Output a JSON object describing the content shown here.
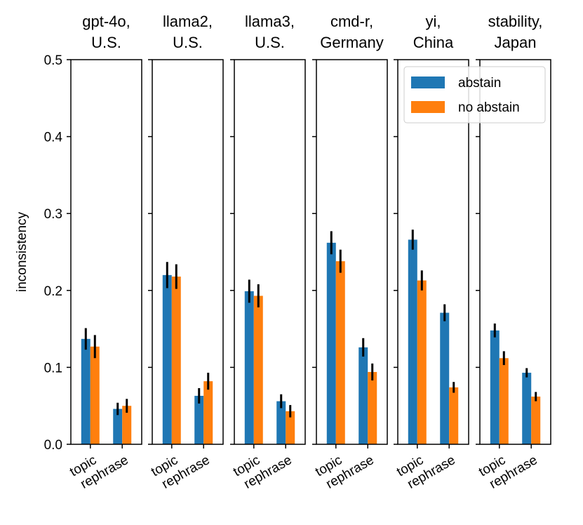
{
  "chart_data": {
    "type": "bar",
    "ylabel": "inconsistency",
    "ylim": [
      0,
      0.5
    ],
    "yticks": [
      0.0,
      0.1,
      0.2,
      0.3,
      0.4,
      0.5
    ],
    "ytick_labels": [
      "0.0",
      "0.1",
      "0.2",
      "0.3",
      "0.4",
      "0.5"
    ],
    "categories": [
      "topic",
      "rephrase"
    ],
    "legend": {
      "placement": "upper-right of fifth panel",
      "entries": [
        {
          "name": "abstain",
          "color": "#1f77b4"
        },
        {
          "name": "no abstain",
          "color": "#ff7f0e"
        }
      ]
    },
    "panels": [
      {
        "title_line1": "gpt-4o,",
        "title_line2": "U.S.",
        "series": [
          {
            "name": "abstain",
            "values": [
              0.137,
              0.046
            ],
            "errors": [
              0.014,
              0.008
            ]
          },
          {
            "name": "no abstain",
            "values": [
              0.127,
              0.05
            ],
            "errors": [
              0.015,
              0.009
            ]
          }
        ]
      },
      {
        "title_line1": "llama2,",
        "title_line2": "U.S.",
        "series": [
          {
            "name": "abstain",
            "values": [
              0.22,
              0.063
            ],
            "errors": [
              0.017,
              0.01
            ]
          },
          {
            "name": "no abstain",
            "values": [
              0.218,
              0.082
            ],
            "errors": [
              0.016,
              0.011
            ]
          }
        ]
      },
      {
        "title_line1": "llama3,",
        "title_line2": "U.S.",
        "series": [
          {
            "name": "abstain",
            "values": [
              0.199,
              0.056
            ],
            "errors": [
              0.015,
              0.009
            ]
          },
          {
            "name": "no abstain",
            "values": [
              0.193,
              0.043
            ],
            "errors": [
              0.015,
              0.008
            ]
          }
        ]
      },
      {
        "title_line1": "cmd-r,",
        "title_line2": "Germany",
        "series": [
          {
            "name": "abstain",
            "values": [
              0.262,
              0.126
            ],
            "errors": [
              0.015,
              0.012
            ]
          },
          {
            "name": "no abstain",
            "values": [
              0.238,
              0.094
            ],
            "errors": [
              0.015,
              0.011
            ]
          }
        ]
      },
      {
        "title_line1": "yi,",
        "title_line2": "China",
        "series": [
          {
            "name": "abstain",
            "values": [
              0.266,
              0.171
            ],
            "errors": [
              0.013,
              0.011
            ]
          },
          {
            "name": "no abstain",
            "values": [
              0.213,
              0.074
            ],
            "errors": [
              0.013,
              0.007
            ]
          }
        ]
      },
      {
        "title_line1": "stability,",
        "title_line2": "Japan",
        "series": [
          {
            "name": "abstain",
            "values": [
              0.148,
              0.093
            ],
            "errors": [
              0.009,
              0.006
            ]
          },
          {
            "name": "no abstain",
            "values": [
              0.112,
              0.062
            ],
            "errors": [
              0.009,
              0.006
            ]
          }
        ]
      }
    ]
  }
}
